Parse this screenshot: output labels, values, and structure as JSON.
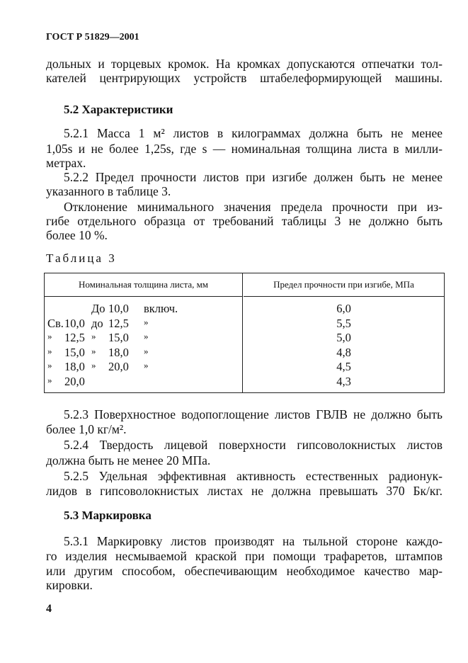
{
  "header": "ГОСТ Р 51829—2001",
  "intro": [
    "дольных и торцевых кромок. На кромках допускаются отпечатки тол-",
    "кателей центрирующих устройств штабелеформирующей машины."
  ],
  "section_52": "5.2 Характеристики",
  "p521": [
    "5.2.1 Масса 1 м² листов в килограммах должна быть не менее",
    "1,05s и не более 1,25s, где s — номинальная толщина листа в милли-",
    "метрах."
  ],
  "p522": [
    "5.2.2 Предел прочности листов при изгибе должен быть не менее",
    "указанного в таблице 3."
  ],
  "p_dev": [
    "Отклонение минимального значения предела прочности при из-",
    "гибе отдельного образца от требований таблицы 3 не должно быть",
    "более 10 %."
  ],
  "table_caption": "Таблица 3",
  "table": {
    "headers": [
      "Номинальная толщина листа, мм",
      "Предел прочности при изгибе, МПа"
    ],
    "rows": [
      {
        "c": [
          "",
          "",
          "До",
          "10,0",
          "включ."
        ],
        "v": "6,0"
      },
      {
        "c": [
          "Св.",
          "10,0",
          "до",
          "12,5",
          "»"
        ],
        "v": "5,5"
      },
      {
        "c": [
          "»",
          "12,5",
          "»",
          "15,0",
          "»"
        ],
        "v": "5,0"
      },
      {
        "c": [
          "»",
          "15,0",
          "»",
          "18,0",
          "»"
        ],
        "v": "4,8"
      },
      {
        "c": [
          "»",
          "18,0",
          "»",
          "20,0",
          "»"
        ],
        "v": "4,5"
      },
      {
        "c": [
          "»",
          "20,0",
          "",
          "",
          ""
        ],
        "v": "4,3"
      }
    ]
  },
  "p523": [
    "5.2.3 Поверхностное водопоглощение листов ГВЛВ не должно быть",
    "более 1,0 кг/м²."
  ],
  "p524": [
    "5.2.4 Твердость лицевой поверхности гипсоволокнистых листов",
    "должна быть не менее 20 МПа."
  ],
  "p525": [
    "5.2.5 Удельная эффективная активность естественных радионук-",
    "лидов в гипсоволокнистых листах не должна превышать 370 Бк/кг."
  ],
  "section_53": "5.3 Маркировка",
  "p531": [
    "5.3.1 Маркировку листов производят на тыльной стороне каждо-",
    "го изделия несмываемой краской при помощи трафаретов, штампов",
    "или другим способом, обеспечивающим необходимое качество мар-",
    "кировки."
  ],
  "page_number": "4"
}
